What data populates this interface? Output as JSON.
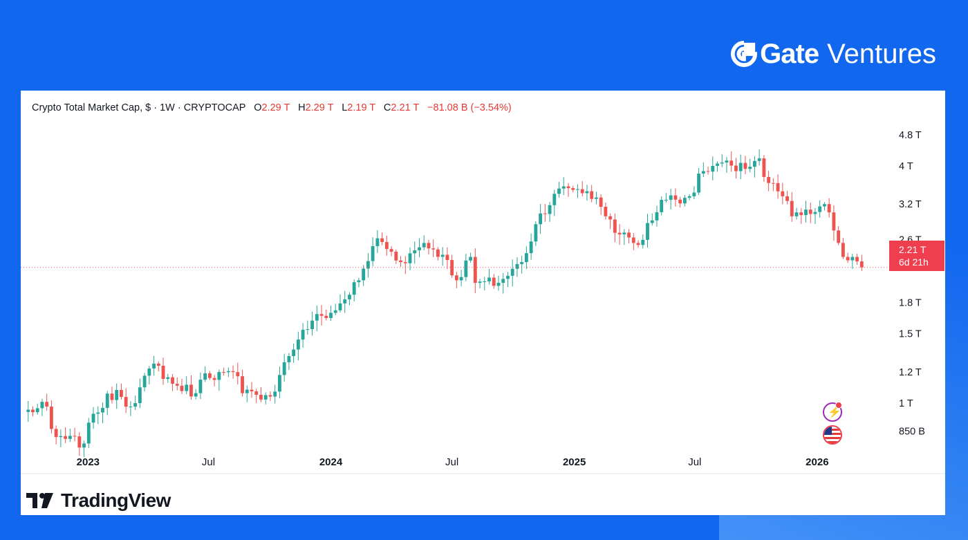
{
  "brand": {
    "gate": "Gate",
    "ventures": "Ventures",
    "color": "#ffffff"
  },
  "header": {
    "title": "Crypto Total Market Cap, $ · 1W · CRYPTOCAP",
    "open_label": "O",
    "open": "2.29 T",
    "high_label": "H",
    "high": "2.29 T",
    "low_label": "L",
    "low": "2.19 T",
    "close_label": "C",
    "close": "2.21 T",
    "change": "−81.08 B (−3.54%)"
  },
  "price_tag": {
    "price": "2.21 T",
    "countdown": "6d 21h",
    "color": "#ef3e4e"
  },
  "footer": {
    "logo_text": "TradingView"
  },
  "colors": {
    "up": "#26a69a",
    "down": "#ef5350",
    "page": "#1167ee",
    "panel": "#ffffff"
  },
  "icons": [
    "lightning-event-icon",
    "us-flag-event-icon",
    "tradingview-logo-icon",
    "gate-logo-icon"
  ],
  "chart_data": {
    "type": "candlestick",
    "title": "Crypto Total Market Cap, $",
    "interval": "1W",
    "symbol": "CRYPTOCAP",
    "y_scale": "log",
    "ylim": [
      0.76,
      5.2
    ],
    "y_ticks": [
      {
        "value": 4.8,
        "label": "4.8 T"
      },
      {
        "value": 4.0,
        "label": "4 T"
      },
      {
        "value": 3.2,
        "label": "3.2 T"
      },
      {
        "value": 2.6,
        "label": "2.6 T"
      },
      {
        "value": 1.8,
        "label": "1.8 T"
      },
      {
        "value": 1.5,
        "label": "1.5 T"
      },
      {
        "value": 1.2,
        "label": "1.2 T"
      },
      {
        "value": 1.0,
        "label": "1 T"
      },
      {
        "value": 0.85,
        "label": "850 B"
      }
    ],
    "x_ticks": [
      {
        "date": "2023-01-01",
        "label": "2023",
        "bold": true
      },
      {
        "date": "2023-07-01",
        "label": "Jul",
        "bold": false
      },
      {
        "date": "2024-01-01",
        "label": "2024",
        "bold": true
      },
      {
        "date": "2024-07-01",
        "label": "Jul",
        "bold": false
      },
      {
        "date": "2025-01-01",
        "label": "2025",
        "bold": true
      },
      {
        "date": "2025-07-01",
        "label": "Jul",
        "bold": false
      },
      {
        "date": "2026-01-01",
        "label": "2026",
        "bold": true
      }
    ],
    "x_range": [
      "2022-09-26",
      "2026-04-13"
    ],
    "last_price": 2.21,
    "anchors": [
      [
        "2022-09-26",
        0.95
      ],
      [
        "2022-10-31",
        0.98
      ],
      [
        "2022-11-07",
        0.86
      ],
      [
        "2022-11-14",
        0.82
      ],
      [
        "2022-12-26",
        0.79
      ],
      [
        "2023-01-09",
        0.94
      ],
      [
        "2023-02-13",
        1.08
      ],
      [
        "2023-03-06",
        0.98
      ],
      [
        "2023-04-10",
        1.26
      ],
      [
        "2023-05-08",
        1.12
      ],
      [
        "2023-06-12",
        1.06
      ],
      [
        "2023-06-26",
        1.19
      ],
      [
        "2023-08-14",
        1.17
      ],
      [
        "2023-08-21",
        1.06
      ],
      [
        "2023-09-11",
        1.05
      ],
      [
        "2023-10-09",
        1.07
      ],
      [
        "2023-10-23",
        1.27
      ],
      [
        "2023-11-13",
        1.45
      ],
      [
        "2023-12-04",
        1.62
      ],
      [
        "2024-01-08",
        1.72
      ],
      [
        "2024-02-12",
        2.05
      ],
      [
        "2024-03-11",
        2.62
      ],
      [
        "2024-04-15",
        2.28
      ],
      [
        "2024-05-20",
        2.55
      ],
      [
        "2024-06-17",
        2.38
      ],
      [
        "2024-07-08",
        2.05
      ],
      [
        "2024-07-29",
        2.35
      ],
      [
        "2024-08-05",
        2.02
      ],
      [
        "2024-09-09",
        2.02
      ],
      [
        "2024-10-14",
        2.28
      ],
      [
        "2024-11-11",
        3.03
      ],
      [
        "2024-12-16",
        3.55
      ],
      [
        "2025-01-20",
        3.45
      ],
      [
        "2025-02-10",
        3.15
      ],
      [
        "2025-03-10",
        2.68
      ],
      [
        "2025-04-07",
        2.52
      ],
      [
        "2025-05-12",
        3.28
      ],
      [
        "2025-06-23",
        3.35
      ],
      [
        "2025-07-14",
        3.88
      ],
      [
        "2025-08-11",
        4.08
      ],
      [
        "2025-09-01",
        3.88
      ],
      [
        "2025-10-06",
        4.18
      ],
      [
        "2025-10-13",
        3.75
      ],
      [
        "2025-11-10",
        3.35
      ],
      [
        "2025-11-24",
        2.98
      ],
      [
        "2025-12-22",
        3.02
      ],
      [
        "2026-01-12",
        3.2
      ],
      [
        "2026-02-02",
        2.55
      ],
      [
        "2026-02-09",
        2.35
      ],
      [
        "2026-03-02",
        2.29
      ],
      [
        "2026-03-09",
        2.21
      ]
    ]
  }
}
